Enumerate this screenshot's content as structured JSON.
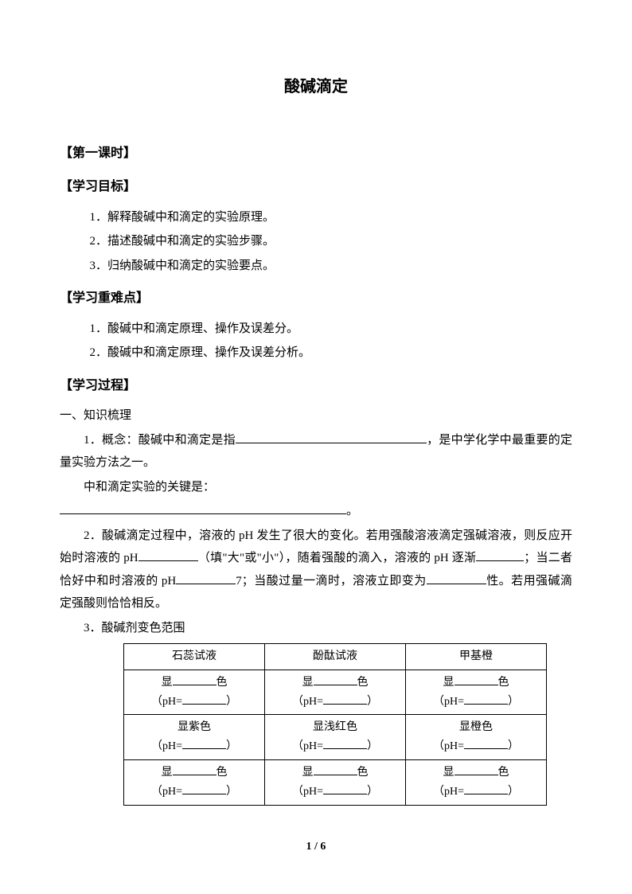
{
  "title": "酸碱滴定",
  "sections": {
    "lesson": "【第一课时】",
    "objectives": {
      "heading": "【学习目标】",
      "items": [
        "1．解释酸碱中和滴定的实验原理。",
        "2．描述酸碱中和滴定的实验步骤。",
        "3．归纳酸碱中和滴定的实验要点。"
      ]
    },
    "difficulties": {
      "heading": "【学习重难点】",
      "items": [
        "1．酸碱中和滴定原理、操作及误差分。",
        "2．酸碱中和滴定原理、操作及误差分析。"
      ]
    },
    "process": {
      "heading": "【学习过程】",
      "sub1": "一、知识梳理",
      "p1a": "1．概念：酸碱中和滴定是指",
      "p1b": "，是中学化学中最重要的定量实验方法之一。",
      "p1c": "中和滴定实验的关键是：",
      "p1d": "。",
      "p2a": "2．酸碱滴定过程中，溶液的 pH 发生了很大的变化。若用强酸溶液滴定强碱溶液，则反应开始时溶液的 pH",
      "p2b": "（填\"大\"或\"小\"），随着强酸的滴入，溶液的 pH 逐渐",
      "p2c": "；当二者恰好中和时溶液的 pH",
      "p2d": "7；当酸过量一滴时，溶液立即变为",
      "p2e": "性。若用强碱滴定强酸则恰恰相反。",
      "p3": "3．酸碱剂变色范围"
    }
  },
  "table": {
    "headers": [
      "石蕊试液",
      "酚酞试液",
      "甲基橙"
    ],
    "row1_disp": "显",
    "row1_color": "色",
    "row1_ph": "（pH=",
    "row1_close": "）",
    "row2": [
      "显紫色",
      "显浅红色",
      "显橙色"
    ],
    "row2_ph": "（pH=",
    "row2_close": "）",
    "row3_disp": "显",
    "row3_color": "色",
    "row3_ph": "（pH=",
    "row3_close": "）"
  },
  "pagenum": "1 / 6"
}
